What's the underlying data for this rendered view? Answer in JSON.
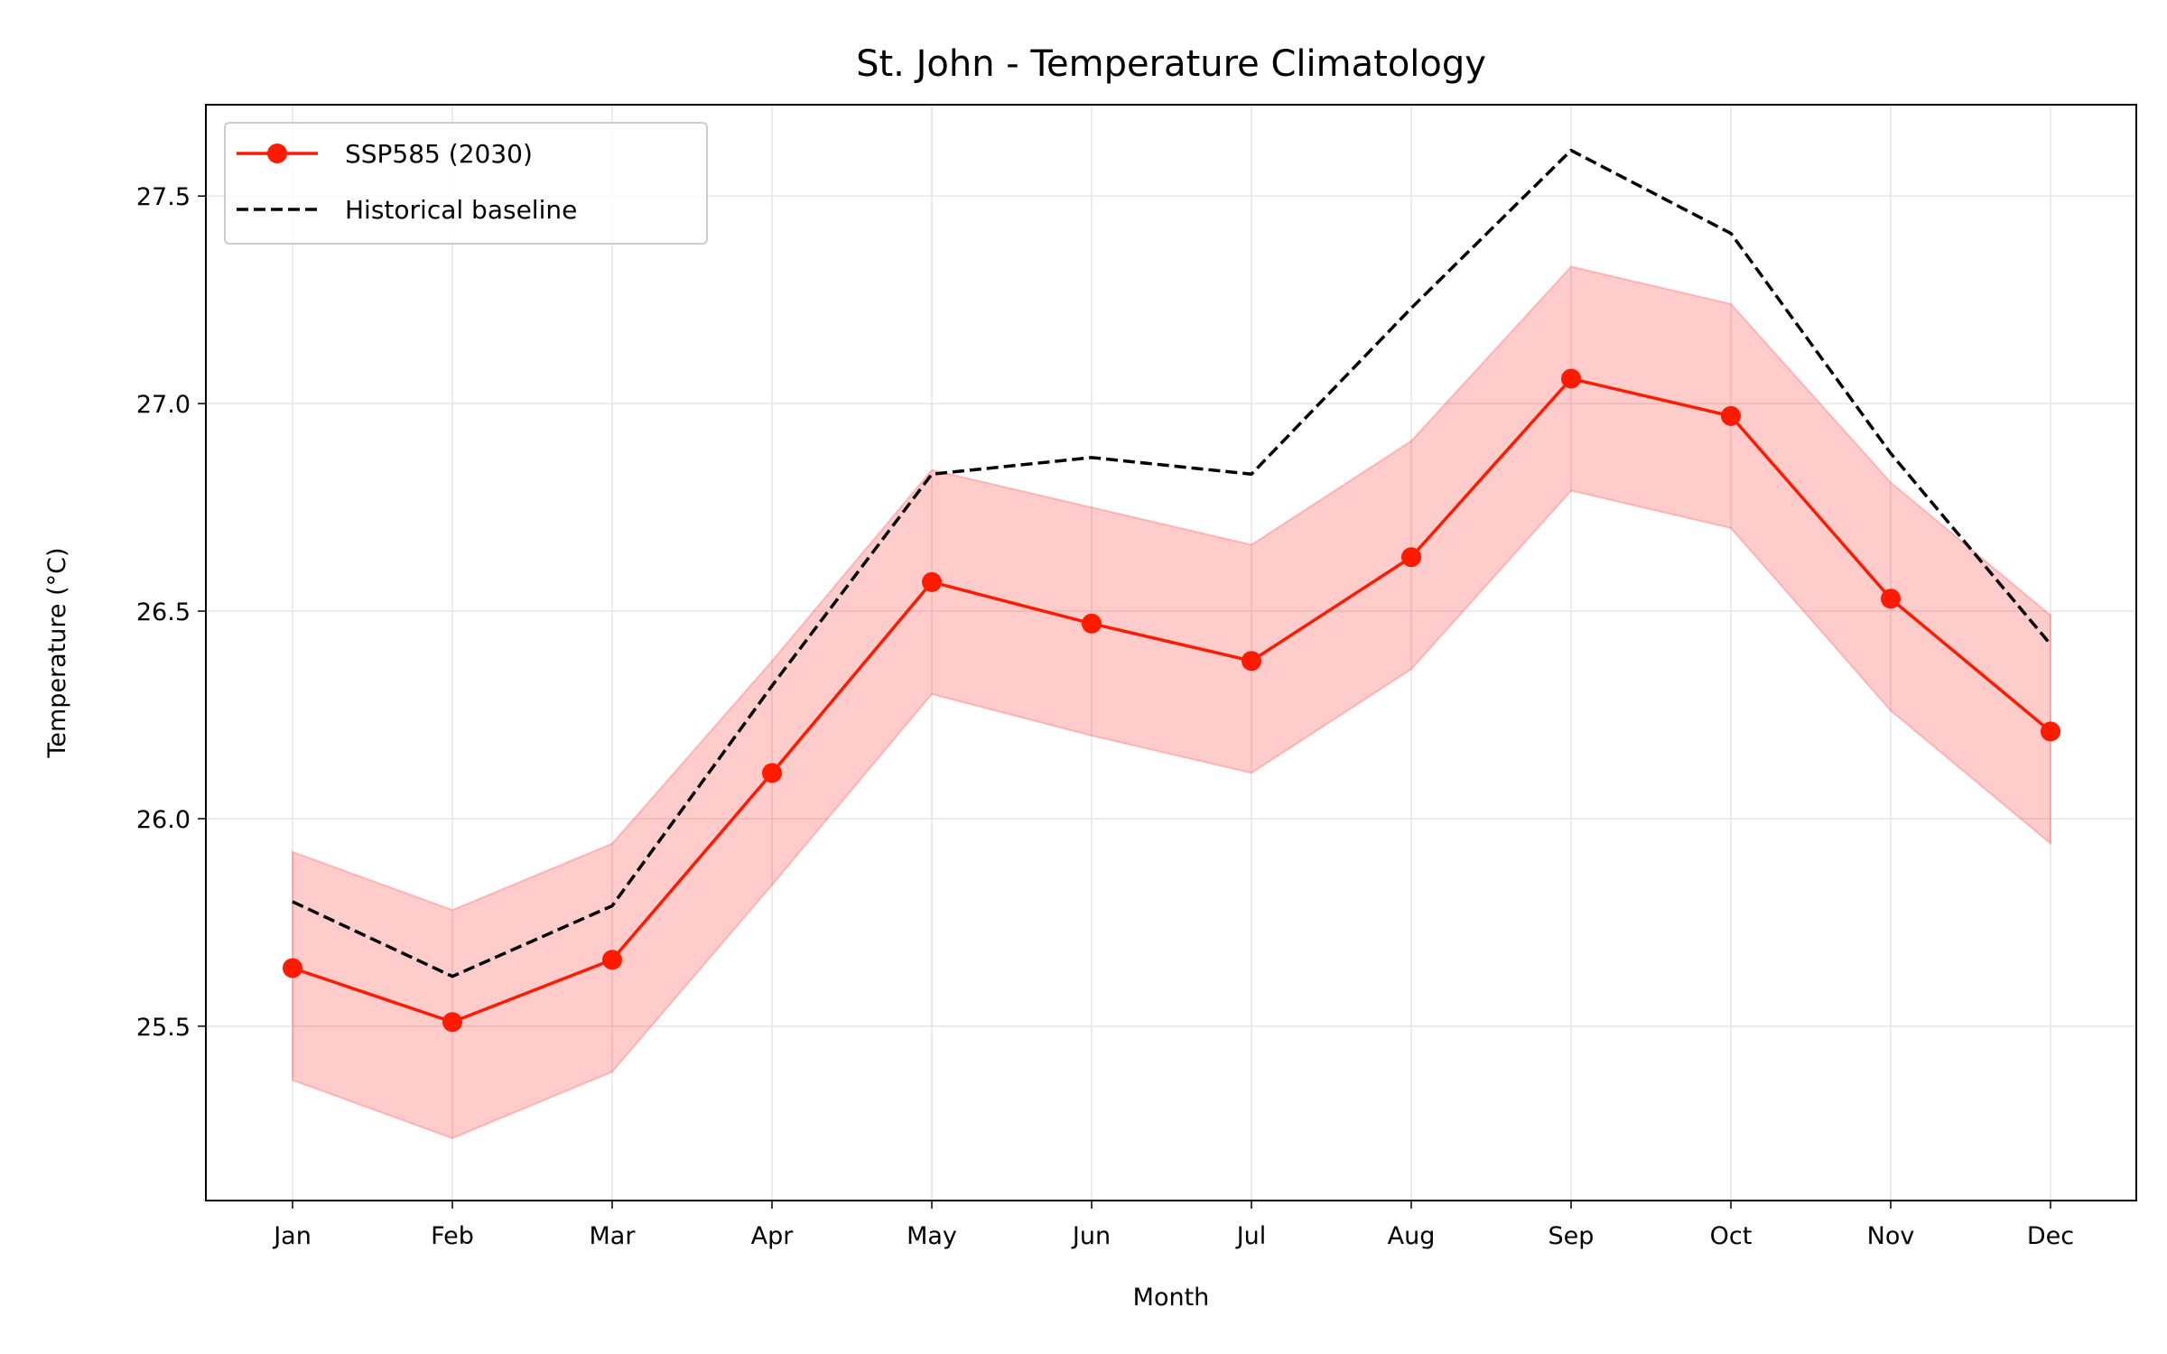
{
  "chart_data": {
    "type": "line",
    "title": "St. John - Temperature Climatology",
    "xlabel": "Month",
    "ylabel": "Temperature (°C)",
    "categories": [
      "Jan",
      "Feb",
      "Mar",
      "Apr",
      "May",
      "Jun",
      "Jul",
      "Aug",
      "Sep",
      "Oct",
      "Nov",
      "Dec"
    ],
    "ylim": [
      25.08,
      27.72
    ],
    "yticks": [
      25.5,
      26.0,
      26.5,
      27.0,
      27.5
    ],
    "ytick_labels": [
      "25.5",
      "26.0",
      "26.5",
      "27.0",
      "27.5"
    ],
    "grid": true,
    "legend_position": "top-left",
    "series": [
      {
        "name": "SSP585 (2030)",
        "style": "solid",
        "marker": "circle",
        "color": "#ff1a00",
        "values": [
          25.64,
          25.51,
          25.66,
          26.11,
          26.57,
          26.47,
          26.38,
          26.63,
          27.06,
          26.97,
          26.53,
          26.21
        ],
        "band_lower": [
          25.37,
          25.23,
          25.39,
          25.84,
          26.3,
          26.2,
          26.11,
          26.36,
          26.79,
          26.7,
          26.26,
          25.94
        ],
        "band_upper": [
          25.92,
          25.78,
          25.94,
          26.38,
          26.84,
          26.75,
          26.66,
          26.91,
          27.33,
          27.24,
          26.81,
          26.49
        ],
        "band_color": "#ff0000"
      },
      {
        "name": "Historical baseline",
        "style": "dashed",
        "color": "#000000",
        "values": [
          25.8,
          25.62,
          25.79,
          26.32,
          26.83,
          26.87,
          26.83,
          27.23,
          27.61,
          27.41,
          26.88,
          26.42
        ]
      }
    ]
  }
}
